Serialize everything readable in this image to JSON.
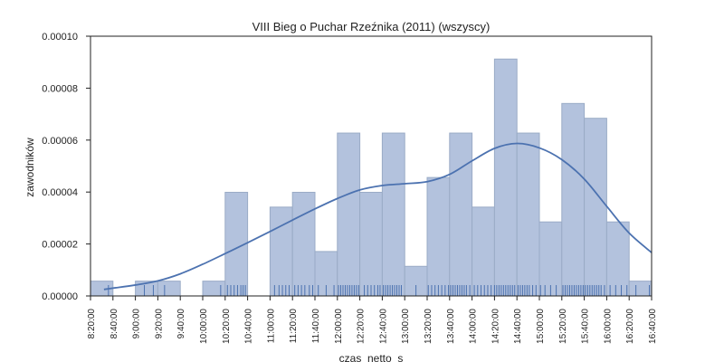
{
  "chart_data": {
    "type": "histogram",
    "title": "VIII Bieg o Puchar Rzeźnika (2011) (wszyscy)",
    "xlabel": "czas  netto  s",
    "ylabel": "zawodników",
    "xlim": [
      "8:20:00",
      "16:40:00"
    ],
    "ylim": [
      0,
      0.0001
    ],
    "grid": false,
    "yticks": [
      "0.00000",
      "0.00002",
      "0.00004",
      "0.00006",
      "0.00008",
      "0.00010"
    ],
    "xticks": [
      "8:20:00",
      "8:40:00",
      "9:00:00",
      "9:20:00",
      "9:40:00",
      "10:00:00",
      "10:20:00",
      "10:40:00",
      "11:00:00",
      "11:20:00",
      "11:40:00",
      "12:00:00",
      "12:20:00",
      "12:40:00",
      "13:00:00",
      "13:20:00",
      "13:40:00",
      "14:00:00",
      "14:20:00",
      "14:40:00",
      "15:00:00",
      "15:20:00",
      "15:40:00",
      "16:00:00",
      "16:20:00",
      "16:40:00"
    ],
    "bins": [
      {
        "start": "8:20:00",
        "end": "8:40:00",
        "density": 5.7e-06
      },
      {
        "start": "8:40:00",
        "end": "9:00:00",
        "density": 0.0
      },
      {
        "start": "9:00:00",
        "end": "9:20:00",
        "density": 5.7e-06
      },
      {
        "start": "9:20:00",
        "end": "9:40:00",
        "density": 5.7e-06
      },
      {
        "start": "9:40:00",
        "end": "10:00:00",
        "density": 0.0
      },
      {
        "start": "10:00:00",
        "end": "10:20:00",
        "density": 5.7e-06
      },
      {
        "start": "10:20:00",
        "end": "10:40:00",
        "density": 3.99e-05
      },
      {
        "start": "10:40:00",
        "end": "11:00:00",
        "density": 0.0
      },
      {
        "start": "11:00:00",
        "end": "11:20:00",
        "density": 3.42e-05
      },
      {
        "start": "11:20:00",
        "end": "11:40:00",
        "density": 3.99e-05
      },
      {
        "start": "11:40:00",
        "end": "12:00:00",
        "density": 1.71e-05
      },
      {
        "start": "12:00:00",
        "end": "12:20:00",
        "density": 6.27e-05
      },
      {
        "start": "12:20:00",
        "end": "12:40:00",
        "density": 3.99e-05
      },
      {
        "start": "12:40:00",
        "end": "13:00:00",
        "density": 6.27e-05
      },
      {
        "start": "13:00:00",
        "end": "13:20:00",
        "density": 1.14e-05
      },
      {
        "start": "13:20:00",
        "end": "13:40:00",
        "density": 4.56e-05
      },
      {
        "start": "13:40:00",
        "end": "14:00:00",
        "density": 6.27e-05
      },
      {
        "start": "14:00:00",
        "end": "14:20:00",
        "density": 3.42e-05
      },
      {
        "start": "14:20:00",
        "end": "14:40:00",
        "density": 9.12e-05
      },
      {
        "start": "14:40:00",
        "end": "15:00:00",
        "density": 6.27e-05
      },
      {
        "start": "15:00:00",
        "end": "15:20:00",
        "density": 2.85e-05
      },
      {
        "start": "15:20:00",
        "end": "15:40:00",
        "density": 7.41e-05
      },
      {
        "start": "15:40:00",
        "end": "16:00:00",
        "density": 6.84e-05
      },
      {
        "start": "16:00:00",
        "end": "16:20:00",
        "density": 2.85e-05
      },
      {
        "start": "16:20:00",
        "end": "16:40:00",
        "density": 5.7e-06
      }
    ],
    "kde": [
      {
        "x": "8:32:00",
        "y": 2.5e-06
      },
      {
        "x": "8:40:00",
        "y": 3e-06
      },
      {
        "x": "9:00:00",
        "y": 4.2e-06
      },
      {
        "x": "9:20:00",
        "y": 5.8e-06
      },
      {
        "x": "9:40:00",
        "y": 8.5e-06
      },
      {
        "x": "10:00:00",
        "y": 1.22e-05
      },
      {
        "x": "10:20:00",
        "y": 1.63e-05
      },
      {
        "x": "10:40:00",
        "y": 2.05e-05
      },
      {
        "x": "11:00:00",
        "y": 2.48e-05
      },
      {
        "x": "11:20:00",
        "y": 2.92e-05
      },
      {
        "x": "11:40:00",
        "y": 3.35e-05
      },
      {
        "x": "12:00:00",
        "y": 3.75e-05
      },
      {
        "x": "12:20:00",
        "y": 4.08e-05
      },
      {
        "x": "12:40:00",
        "y": 4.25e-05
      },
      {
        "x": "13:00:00",
        "y": 4.32e-05
      },
      {
        "x": "13:20:00",
        "y": 4.4e-05
      },
      {
        "x": "13:40:00",
        "y": 4.68e-05
      },
      {
        "x": "14:00:00",
        "y": 5.2e-05
      },
      {
        "x": "14:20:00",
        "y": 5.68e-05
      },
      {
        "x": "14:40:00",
        "y": 5.87e-05
      },
      {
        "x": "15:00:00",
        "y": 5.7e-05
      },
      {
        "x": "15:20:00",
        "y": 5.25e-05
      },
      {
        "x": "15:40:00",
        "y": 4.5e-05
      },
      {
        "x": "16:00:00",
        "y": 3.45e-05
      },
      {
        "x": "16:20:00",
        "y": 2.42e-05
      },
      {
        "x": "16:40:00",
        "y": 1.67e-05
      }
    ],
    "rug": [
      "8:36:00",
      "9:08:00",
      "9:16:00",
      "9:26:00",
      "10:16:00",
      "10:22:00",
      "10:25:00",
      "10:28:00",
      "10:31:00",
      "10:34:00",
      "10:36:00",
      "10:38:00",
      "11:04:00",
      "11:08:00",
      "11:11:00",
      "11:14:00",
      "11:17:00",
      "11:22:00",
      "11:25:00",
      "11:28:00",
      "11:31:00",
      "11:35:00",
      "11:38:00",
      "11:43:00",
      "11:50:00",
      "11:57:00",
      "12:01:00",
      "12:03:00",
      "12:05:00",
      "12:07:00",
      "12:09:00",
      "12:11:00",
      "12:13:00",
      "12:15:00",
      "12:17:00",
      "12:19:00",
      "12:24:00",
      "12:27:00",
      "12:30:00",
      "12:33:00",
      "12:36:00",
      "12:38:00",
      "12:41:00",
      "12:43:00",
      "12:45:00",
      "12:47:00",
      "12:49:00",
      "12:51:00",
      "12:53:00",
      "12:55:00",
      "12:57:00",
      "13:10:00",
      "13:21:00",
      "13:24:00",
      "13:27:00",
      "13:30:00",
      "13:33:00",
      "13:36:00",
      "13:39:00",
      "13:41:00",
      "13:43:00",
      "13:45:00",
      "13:47:00",
      "13:49:00",
      "13:51:00",
      "13:53:00",
      "13:55:00",
      "13:58:00",
      "14:02:00",
      "14:05:00",
      "14:08:00",
      "14:11:00",
      "14:14:00",
      "14:17:00",
      "14:20:00",
      "14:22:00",
      "14:24:00",
      "14:26:00",
      "14:28:00",
      "14:30:00",
      "14:32:00",
      "14:34:00",
      "14:36:00",
      "14:38:00",
      "14:41:00",
      "14:43:00",
      "14:45:00",
      "14:47:00",
      "14:49:00",
      "14:51:00",
      "14:54:00",
      "14:57:00",
      "15:01:00",
      "15:05:00",
      "15:10:00",
      "15:15:00",
      "15:21:00",
      "15:23:00",
      "15:25:00",
      "15:27:00",
      "15:29:00",
      "15:31:00",
      "15:33:00",
      "15:35:00",
      "15:37:00",
      "15:39:00",
      "15:41:00",
      "15:43:00",
      "15:45:00",
      "15:47:00",
      "15:49:00",
      "15:51:00",
      "15:53:00",
      "15:55:00",
      "15:58:00",
      "16:03:00",
      "16:08:00",
      "16:13:00",
      "16:18:00",
      "16:26:00",
      "16:38:00"
    ]
  },
  "colors": {
    "bar_fill": "#b3c2dd",
    "bar_stroke": "#9aabc6",
    "kde_line": "#4c72b0",
    "rug": "#4c72b0",
    "axis": "#222222",
    "background": "#ffffff"
  }
}
